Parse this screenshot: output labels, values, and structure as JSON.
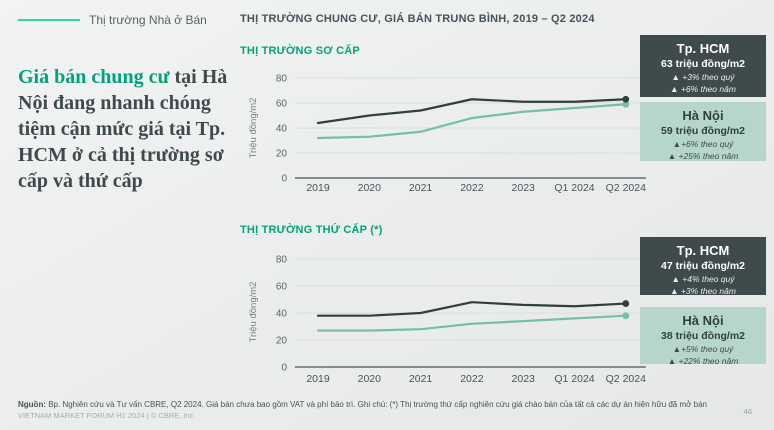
{
  "page": {
    "legend_label": "Thị trường Nhà ở Bán",
    "header_title": "THỊ TRƯỜNG CHUNG CƯ, GIÁ BÁN TRUNG BÌNH, 2019 – Q2 2024",
    "headline": {
      "highlight": "Giá bán chung cư",
      "rest": " tại Hà Nội đang nhanh chóng tiệm cận mức giá tại Tp. HCM ở cả thị trường sơ cấp và thứ cấp"
    },
    "footer": {
      "source_bold": "Nguồn:",
      "source_text": " Bp. Nghiên cứu và Tư vấn CBRE, Q2 2024. Giá bán chưa bao gồm VAT và phí bảo trì. Ghi chú: (*) Thị trường thứ cấp nghiên cứu giá chào bán của tất cả các dự án hiện hữu đã mở bán",
      "forum_line": "VIETNAM MARKET FORUM H1 2024 | © CBRE, Inc.",
      "page_number": "46"
    }
  },
  "colors": {
    "accent_teal": "#00a478",
    "bright_green_legend": "#2edc91",
    "hcm_line": "#323f3f",
    "hanoi_line": "#74bfa6",
    "dark_box_bg": "#3e4a4b",
    "light_box_bg": "#b5d6c9",
    "headline_text": "#3f4a4e"
  },
  "chart_data": [
    {
      "type": "line",
      "title": "THỊ TRƯỜNG SƠ CẤP",
      "ylabel": "Triệu đồng/m2",
      "categories": [
        "2019",
        "2020",
        "2021",
        "2022",
        "2023",
        "Q1 2024",
        "Q2 2024"
      ],
      "yticks": [
        0,
        20,
        40,
        60,
        80
      ],
      "ylim": [
        0,
        80
      ],
      "grid": true,
      "legend_position": "right-callouts",
      "series": [
        {
          "name": "Tp. HCM",
          "color": "#323f3f",
          "values": [
            44,
            50,
            54,
            63,
            61,
            61,
            63
          ]
        },
        {
          "name": "Hà Nội",
          "color": "#74bfa6",
          "values": [
            32,
            33,
            37,
            48,
            53,
            56,
            59
          ]
        }
      ],
      "callouts": [
        {
          "name": "Tp. HCM",
          "value_label": "63 triệu đồng/m2",
          "qoq": "▲ +3% theo quý",
          "yoy": "▲ +6% theo năm",
          "style": "dark"
        },
        {
          "name": "Hà Nội",
          "value_label": "59 triệu đồng/m2",
          "qoq": "▲+6% theo quý",
          "yoy": "▲ +25% theo năm",
          "style": "light"
        }
      ]
    },
    {
      "type": "line",
      "title": "THỊ TRƯỜNG THỨ CẤP (*)",
      "ylabel": "Triệu đồng/m2",
      "categories": [
        "2019",
        "2020",
        "2021",
        "2022",
        "2023",
        "Q1 2024",
        "Q2 2024"
      ],
      "yticks": [
        0,
        20,
        40,
        60,
        80
      ],
      "ylim": [
        0,
        80
      ],
      "grid": true,
      "legend_position": "right-callouts",
      "series": [
        {
          "name": "Tp. HCM",
          "color": "#323f3f",
          "values": [
            38,
            38,
            40,
            48,
            46,
            45,
            47
          ]
        },
        {
          "name": "Hà Nội",
          "color": "#74bfa6",
          "values": [
            27,
            27,
            28,
            32,
            34,
            36,
            38
          ]
        }
      ],
      "callouts": [
        {
          "name": "Tp. HCM",
          "value_label": "47 triệu đồng/m2",
          "qoq": "▲ +4% theo quý",
          "yoy": "▲ +3% theo năm",
          "style": "dark"
        },
        {
          "name": "Hà Nội",
          "value_label": "38 triệu đồng/m2",
          "qoq": "▲+5% theo quý",
          "yoy": "▲ +22% theo năm",
          "style": "light"
        }
      ]
    }
  ]
}
